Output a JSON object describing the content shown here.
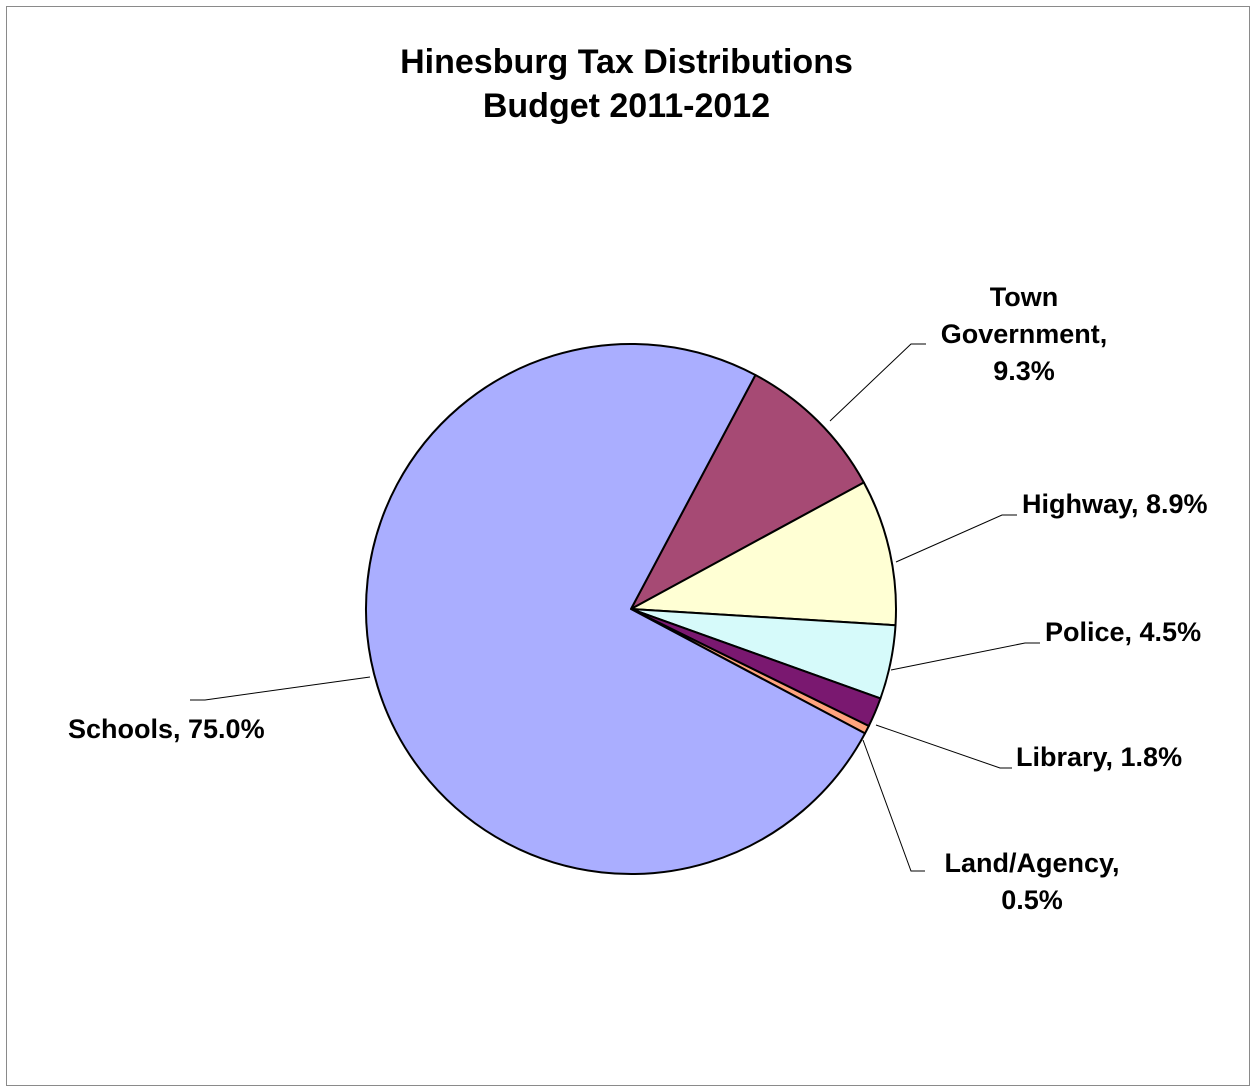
{
  "chart_data": {
    "type": "pie",
    "title": [
      "Hinesburg Tax Distributions",
      "Budget 2011-2012"
    ],
    "legend": "none",
    "slices": [
      {
        "name": "Town Government",
        "value": 9.3,
        "label_lines": [
          "Town",
          "Government,",
          "9.3%"
        ],
        "color": "#A64A74"
      },
      {
        "name": "Highway",
        "value": 8.9,
        "label_lines": [
          "Highway, 8.9%"
        ],
        "color": "#FFFFD4"
      },
      {
        "name": "Police",
        "value": 4.5,
        "label_lines": [
          "Police, 4.5%"
        ],
        "color": "#D6FAFA"
      },
      {
        "name": "Library",
        "value": 1.8,
        "label_lines": [
          "Library, 1.8%"
        ],
        "color": "#7A1870"
      },
      {
        "name": "Land/Agency",
        "value": 0.5,
        "label_lines": [
          "Land/Agency,",
          "0.5%"
        ],
        "color": "#FFA47E"
      },
      {
        "name": "Schools",
        "value": 75.0,
        "label_lines": [
          "Schools, 75.0%"
        ],
        "color": "#AAAEFF"
      }
    ],
    "start_angle_deg": 28
  }
}
